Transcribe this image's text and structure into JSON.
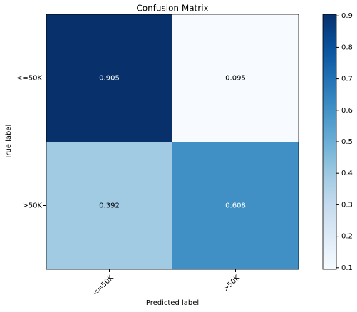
{
  "chart_data": {
    "type": "heatmap",
    "title": "Confusion Matrix",
    "x_label": "Predicted label",
    "y_label": "True label",
    "x_categories": [
      "<=50K",
      ">50K"
    ],
    "y_categories": [
      "<=50K",
      ">50K"
    ],
    "values": [
      [
        0.905,
        0.095
      ],
      [
        0.392,
        0.608
      ]
    ],
    "colormap": "Blues",
    "clim": [
      0.095,
      0.905
    ],
    "colorbar_ticks": [
      0.1,
      0.2,
      0.3,
      0.4,
      0.5,
      0.6,
      0.7,
      0.8,
      0.9
    ]
  }
}
